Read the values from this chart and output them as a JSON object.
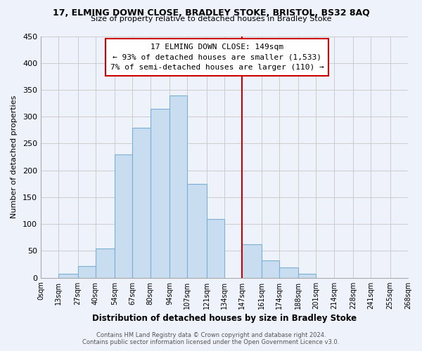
{
  "title": "17, ELMING DOWN CLOSE, BRADLEY STOKE, BRISTOL, BS32 8AQ",
  "subtitle": "Size of property relative to detached houses in Bradley Stoke",
  "xlabel": "Distribution of detached houses by size in Bradley Stoke",
  "ylabel": "Number of detached properties",
  "footer_line1": "Contains HM Land Registry data © Crown copyright and database right 2024.",
  "footer_line2": "Contains public sector information licensed under the Open Government Licence v3.0.",
  "bar_edges": [
    0,
    13,
    27,
    40,
    54,
    67,
    80,
    94,
    107,
    121,
    134,
    147,
    161,
    174,
    188,
    201,
    214,
    228,
    241,
    255,
    268
  ],
  "bar_heights": [
    0,
    7,
    22,
    55,
    230,
    280,
    315,
    340,
    175,
    110,
    0,
    63,
    32,
    19,
    7,
    0,
    0,
    0,
    0,
    0
  ],
  "tick_labels": [
    "0sqm",
    "13sqm",
    "27sqm",
    "40sqm",
    "54sqm",
    "67sqm",
    "80sqm",
    "94sqm",
    "107sqm",
    "121sqm",
    "134sqm",
    "147sqm",
    "161sqm",
    "174sqm",
    "188sqm",
    "201sqm",
    "214sqm",
    "228sqm",
    "241sqm",
    "255sqm",
    "268sqm"
  ],
  "bar_color": "#c9ddf0",
  "bar_edge_color": "#7bafd4",
  "vline_x": 147,
  "vline_color": "#cc0000",
  "annotation_title": "17 ELMING DOWN CLOSE: 149sqm",
  "annotation_line2": "← 93% of detached houses are smaller (1,533)",
  "annotation_line3": "7% of semi-detached houses are larger (110) →",
  "ylim": [
    0,
    450
  ],
  "yticks": [
    0,
    50,
    100,
    150,
    200,
    250,
    300,
    350,
    400,
    450
  ],
  "grid_color": "#cccccc",
  "background_color": "#eef2fb"
}
